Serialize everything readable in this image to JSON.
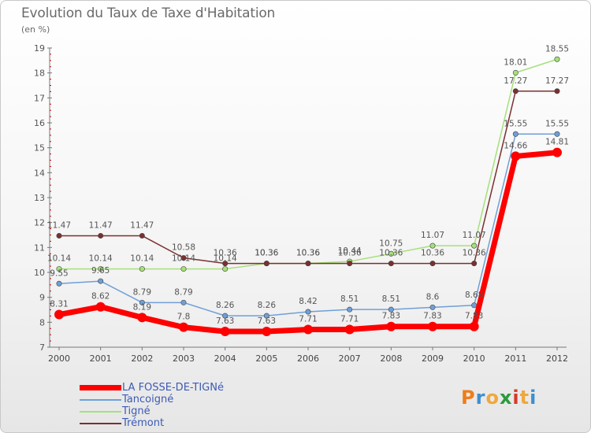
{
  "chart_data": {
    "type": "line",
    "title": "Evolution du Taux de Taxe d'Habitation",
    "subtitle": "(en %)",
    "xlabel": "",
    "ylabel": "",
    "categories": [
      "2000",
      "2001",
      "2002",
      "2003",
      "2004",
      "2005",
      "2006",
      "2007",
      "2008",
      "2009",
      "2010",
      "2011",
      "2012"
    ],
    "y_ticks": [
      "7",
      "8",
      "9",
      "10",
      "11",
      "12",
      "13",
      "14",
      "15",
      "16",
      "17",
      "18",
      "19"
    ],
    "ylim": [
      7,
      19
    ],
    "series": [
      {
        "name": "LA FOSSE-DE-TIGNé",
        "color": "#ff0000",
        "values": [
          8.31,
          8.62,
          8.19,
          7.8,
          7.63,
          7.63,
          7.71,
          7.71,
          7.83,
          7.83,
          7.83,
          14.66,
          14.81
        ],
        "labels": [
          "8.31",
          "8.62",
          "8.19",
          "7.8",
          "7.63",
          "7.63",
          "7.71",
          "7.71",
          "7.83",
          "7.83",
          "7.83",
          "14.66",
          "14.81"
        ]
      },
      {
        "name": "Tancoigné",
        "color": "#6f9fd8",
        "values": [
          9.55,
          9.65,
          8.79,
          8.79,
          8.26,
          8.26,
          8.42,
          8.51,
          8.51,
          8.6,
          8.68,
          15.55,
          15.55
        ],
        "labels": [
          "9.55",
          "9.65",
          "8.79",
          "8.79",
          "8.26",
          "8.26",
          "8.42",
          "8.51",
          "8.51",
          "8.6",
          "8.68",
          "15.55",
          "15.55"
        ]
      },
      {
        "name": "Tigné",
        "color": "#a6e07a",
        "values": [
          10.14,
          10.14,
          10.14,
          10.14,
          10.14,
          10.36,
          10.36,
          10.44,
          10.75,
          11.07,
          11.07,
          18.01,
          18.55
        ],
        "labels": [
          "10.14",
          "10.14",
          "10.14",
          "10.14",
          "10.14",
          "10.36",
          "10.36",
          "10.44",
          "10.75",
          "11.07",
          "11.07",
          "18.01",
          "18.55"
        ]
      },
      {
        "name": "Trémont",
        "color": "#7a3030",
        "values": [
          11.47,
          11.47,
          11.47,
          10.58,
          10.36,
          10.36,
          10.36,
          10.36,
          10.36,
          10.36,
          10.36,
          17.27,
          17.27
        ],
        "labels": [
          "11.47",
          "11.47",
          "11.47",
          "10.58",
          "10.36",
          "10.36",
          "10.36",
          "10.36",
          "10.36",
          "10.36",
          "10.36",
          "17.27",
          "17.27"
        ]
      }
    ],
    "legend_position": "bottom-left",
    "grid": false
  },
  "branding": {
    "logo_letters": [
      "P",
      "r",
      "o",
      "x",
      "i",
      "t",
      "i"
    ],
    "logo_colors": [
      "#ee7d1c",
      "#3c8fd0",
      "#f0a83c",
      "#2d9a3c",
      "#d63a2a",
      "#f0a83c",
      "#3c8fd0"
    ]
  }
}
